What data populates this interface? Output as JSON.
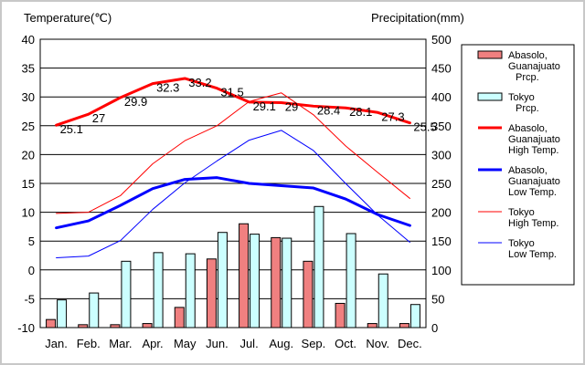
{
  "chart_data": {
    "type": "bar+line",
    "title": "",
    "left_axis_title": "Temperature(℃)",
    "right_axis_title": "Precipitation(mm)",
    "categories": [
      "Jan.",
      "Feb.",
      "Mar.",
      "Apr.",
      "May",
      "Jun.",
      "Jul.",
      "Aug.",
      "Sep.",
      "Oct.",
      "Nov.",
      "Dec."
    ],
    "ylim_left": [
      -10,
      40
    ],
    "yticks_left": [
      -10,
      -5,
      0,
      5,
      10,
      15,
      20,
      25,
      30,
      35,
      40
    ],
    "ylim_right": [
      0,
      500
    ],
    "yticks_right": [
      0,
      50,
      100,
      150,
      200,
      250,
      300,
      350,
      400,
      450,
      500
    ],
    "grid": true,
    "legend_position": "right",
    "bar_series": [
      {
        "name": "Abasolo, Guanajuato Prcp.",
        "color": "#f08080",
        "values": [
          14,
          5,
          5,
          7,
          35,
          119,
          180,
          156,
          115,
          42,
          7,
          7
        ]
      },
      {
        "name": "Tokyo Prcp.",
        "color": "#ccffff",
        "values": [
          48,
          60,
          115,
          130,
          128,
          165,
          162,
          155,
          210,
          163,
          93,
          40
        ]
      }
    ],
    "line_series": [
      {
        "name": "Abasolo, Guanajuato High Temp.",
        "color": "#ff0000",
        "width": 3,
        "values": [
          25.1,
          27,
          29.9,
          32.3,
          33.2,
          31.5,
          29.1,
          29,
          28.4,
          28.1,
          27.3,
          25.5
        ],
        "data_labels": [
          "25.1",
          "27",
          "29.9",
          "32.3",
          "33.2",
          "31.5",
          "29.1",
          "29",
          "28.4",
          "28.1",
          "27.3",
          "25.5"
        ]
      },
      {
        "name": "Abasolo, Guanajuato Low Temp.",
        "color": "#0000ff",
        "width": 3,
        "values": [
          7.3,
          8.5,
          11.2,
          14.1,
          15.7,
          16.0,
          15.0,
          14.6,
          14.2,
          12.3,
          9.6,
          7.7
        ]
      },
      {
        "name": "Tokyo High Temp.",
        "color": "#ff0000",
        "width": 1,
        "values": [
          9.8,
          10.0,
          12.9,
          18.4,
          22.4,
          25.0,
          29.2,
          30.7,
          26.9,
          21.5,
          16.9,
          12.4
        ]
      },
      {
        "name": "Tokyo Low Temp.",
        "color": "#0000ff",
        "width": 1,
        "values": [
          2.1,
          2.4,
          5.1,
          10.5,
          15.1,
          18.9,
          22.5,
          24.2,
          20.7,
          15.0,
          9.5,
          4.8
        ]
      }
    ],
    "legend": [
      {
        "kind": "bar",
        "color": "#f08080",
        "lines": [
          "Abasolo,",
          "Guanajuato",
          "Prcp."
        ]
      },
      {
        "kind": "bar",
        "color": "#ccffff",
        "lines": [
          "Tokyo",
          "Prcp."
        ]
      },
      {
        "kind": "line",
        "color": "#ff0000",
        "width": 3,
        "lines": [
          "Abasolo,",
          "Guanajuato",
          "High Temp."
        ]
      },
      {
        "kind": "line",
        "color": "#0000ff",
        "width": 3,
        "lines": [
          "Abasolo,",
          "Guanajuato",
          "Low Temp."
        ]
      },
      {
        "kind": "line",
        "color": "#ff0000",
        "width": 1,
        "lines": [
          "Tokyo",
          "High Temp."
        ]
      },
      {
        "kind": "line",
        "color": "#0000ff",
        "width": 1,
        "lines": [
          "Tokyo",
          "Low Temp."
        ]
      }
    ]
  }
}
